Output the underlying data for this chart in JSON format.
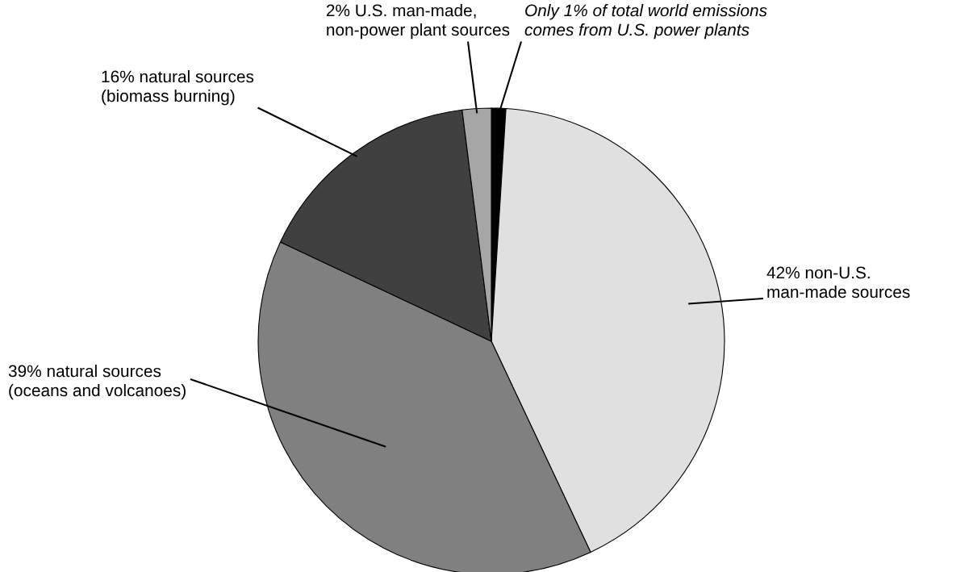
{
  "chart_data": {
    "type": "pie",
    "categories": [
      null,
      "42% non-U.S.\nman-made sources",
      "39% natural sources\n(oceans and volcanoes)",
      "16% natural sources\n(biomass burning)",
      "2% U.S. man-made,\nnon-power plant sources"
    ],
    "values": [
      1,
      42,
      39,
      16,
      2
    ],
    "colors": [
      "#000000",
      "#e0e0e0",
      "#808080",
      "#404040",
      "#a6a6a6"
    ],
    "annotations": [
      "Only 1% of total world emissions\ncomes from U.S. power plants"
    ]
  }
}
